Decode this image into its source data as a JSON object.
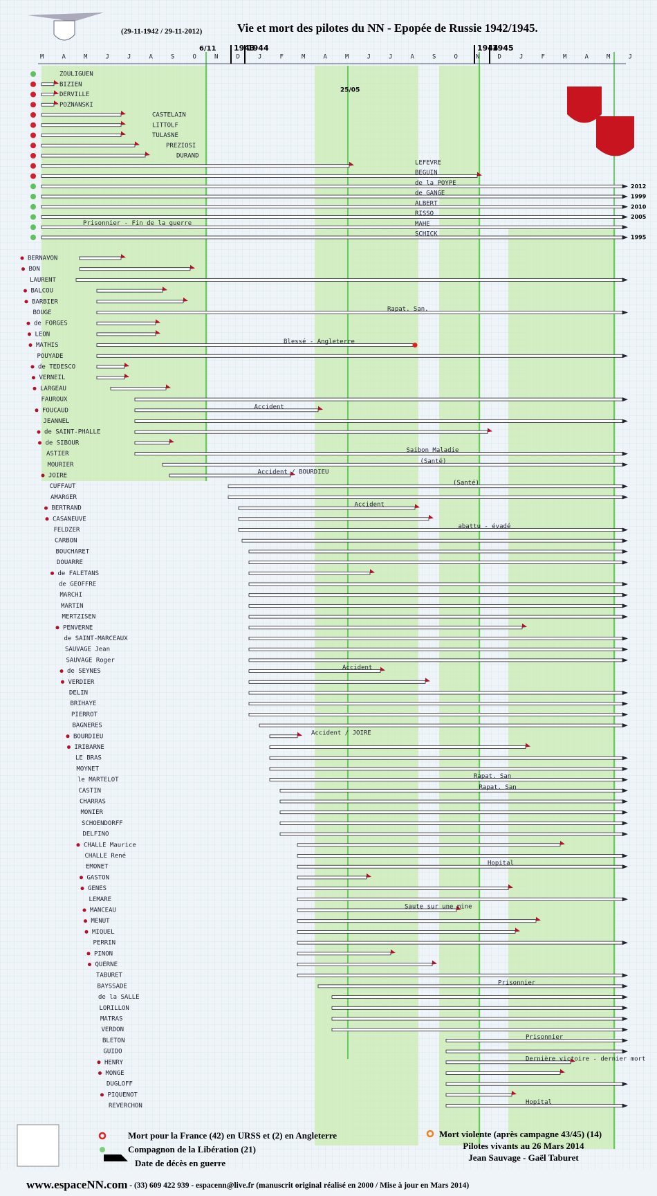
{
  "header": {
    "dates": "(29-11-1942 / 29-11-2012)",
    "title": "Vie et mort des pilotes du NN - Epopée de Russie 1942/1945."
  },
  "timeline": {
    "months": [
      "M",
      "A",
      "M",
      "J",
      "J",
      "A",
      "S",
      "O",
      "N",
      "D",
      "J",
      "F",
      "M",
      "A",
      "M",
      "J",
      "J",
      "A",
      "S",
      "O",
      "N",
      "D",
      "J",
      "F",
      "M",
      "A",
      "M",
      "J"
    ],
    "years": [
      "1943",
      "1944",
      "1944",
      "1945"
    ],
    "markers": [
      "6/11",
      "25/05"
    ]
  },
  "pilots_group1": [
    {
      "name": "ZOULIGUEN"
    },
    {
      "name": "BIZIEN"
    },
    {
      "name": "DERVILLE"
    },
    {
      "name": "POZNANSKI"
    },
    {
      "name": "CASTELAIN"
    },
    {
      "name": "LITTOLF"
    },
    {
      "name": "TULASNE"
    },
    {
      "name": "PREZIOSI"
    },
    {
      "name": "DURAND"
    },
    {
      "name": "LEFEVRE"
    },
    {
      "name": "BEGUIN"
    },
    {
      "name": "de la POYPE",
      "end": "2012"
    },
    {
      "name": "de GANGE",
      "end": "1999"
    },
    {
      "name": "ALBERT",
      "end": "2010"
    },
    {
      "name": "RISSO",
      "end": "2005"
    },
    {
      "name": "MAHE",
      "note": "Prisonnier - Fin de la guerre"
    },
    {
      "name": "SCHICK",
      "end": "1995"
    }
  ],
  "pilots": [
    {
      "name": "BERNAVON"
    },
    {
      "name": "BON"
    },
    {
      "name": "LAURENT"
    },
    {
      "name": "BALCOU"
    },
    {
      "name": "BARBIER"
    },
    {
      "name": "BOUGE",
      "note": "Rapat. San."
    },
    {
      "name": "de FORGES"
    },
    {
      "name": "LEON"
    },
    {
      "name": "MATHIS",
      "note": "Blessé - Angleterre"
    },
    {
      "name": "POUYADE"
    },
    {
      "name": "de TEDESCO"
    },
    {
      "name": "VERNEIL"
    },
    {
      "name": "LARGEAU"
    },
    {
      "name": "FAUROUX"
    },
    {
      "name": "FOUCAUD",
      "note": "Accident"
    },
    {
      "name": "JEANNEL"
    },
    {
      "name": "de SAINT-PHALLE"
    },
    {
      "name": "de SIBOUR"
    },
    {
      "name": "ASTIER",
      "note": "Saibon Maladie"
    },
    {
      "name": "MOURIER",
      "note": "(Santé)"
    },
    {
      "name": "JOIRE",
      "note": "Accident / BOURDIEU"
    },
    {
      "name": "CUFFAUT",
      "note": "(Santé)"
    },
    {
      "name": "AMARGER"
    },
    {
      "name": "BERTRAND",
      "note": "Accident"
    },
    {
      "name": "CASANEUVE"
    },
    {
      "name": "FELDZER",
      "note": "abattu - évadé"
    },
    {
      "name": "CARBON"
    },
    {
      "name": "BOUCHARET"
    },
    {
      "name": "DOUARRE"
    },
    {
      "name": "de FALETANS"
    },
    {
      "name": "de GEOFFRE"
    },
    {
      "name": "MARCHI"
    },
    {
      "name": "MARTIN"
    },
    {
      "name": "MERTZISEN"
    },
    {
      "name": "PENVERNE"
    },
    {
      "name": "de SAINT-MARCEAUX"
    },
    {
      "name": "SAUVAGE Jean"
    },
    {
      "name": "SAUVAGE Roger"
    },
    {
      "name": "de SEYNES",
      "note": "Accident"
    },
    {
      "name": "VERDIER"
    },
    {
      "name": "DELIN"
    },
    {
      "name": "BRIHAYE"
    },
    {
      "name": "PIERROT"
    },
    {
      "name": "BAGNERES"
    },
    {
      "name": "BOURDIEU",
      "note": "Accident / JOIRE"
    },
    {
      "name": "IRIBARNE"
    },
    {
      "name": "LE BRAS"
    },
    {
      "name": "MOYNET"
    },
    {
      "name": "le MARTELOT",
      "note": "Rapat. San"
    },
    {
      "name": "CASTIN",
      "note": "Rapat. San"
    },
    {
      "name": "CHARRAS"
    },
    {
      "name": "MONIER"
    },
    {
      "name": "SCHOENDORFF"
    },
    {
      "name": "DELFINO"
    },
    {
      "name": "CHALLE Maurice"
    },
    {
      "name": "CHALLE René"
    },
    {
      "name": "EMONET",
      "note": "Hopital"
    },
    {
      "name": "GASTON"
    },
    {
      "name": "GENES"
    },
    {
      "name": "LEMARE"
    },
    {
      "name": "MANCEAU",
      "note": "Saute sur une mine"
    },
    {
      "name": "MENUT"
    },
    {
      "name": "MIQUEL"
    },
    {
      "name": "PERRIN"
    },
    {
      "name": "PINON"
    },
    {
      "name": "QUERNE"
    },
    {
      "name": "TABURET"
    },
    {
      "name": "BAYSSADE",
      "note": "Prisonnier"
    },
    {
      "name": "de la SALLE"
    },
    {
      "name": "LORILLON"
    },
    {
      "name": "MATRAS"
    },
    {
      "name": "VERDON"
    },
    {
      "name": "BLETON",
      "note": "Prisonnier"
    },
    {
      "name": "GUIDO"
    },
    {
      "name": "HENRY",
      "note": "Dernière victoire - dernier mort"
    },
    {
      "name": "MONGE"
    },
    {
      "name": "DUGLOFF"
    },
    {
      "name": "PIQUENOT"
    },
    {
      "name": "REVERCHON",
      "note": "Hopital"
    }
  ],
  "legend": {
    "dead": "Mort pour la France (42) en URSS et (2) en Angleterre",
    "compagnon": "Compagnon de la Libération (21)",
    "flag": "Date de décès en guerre",
    "violent": "Mort violente (après campagne 43/45)  (14)",
    "alive": "Pilotes vivants au 26 Mars 2014",
    "authors": "Jean Sauvage - Gaël Taburet"
  },
  "footer": {
    "site": "www.espaceNN.com",
    "contact": " - (33) 609 422 939 - espacenn@live.fr (manuscrit original réalisé en 2000 / Mise à jour en Mars 2014)"
  }
}
